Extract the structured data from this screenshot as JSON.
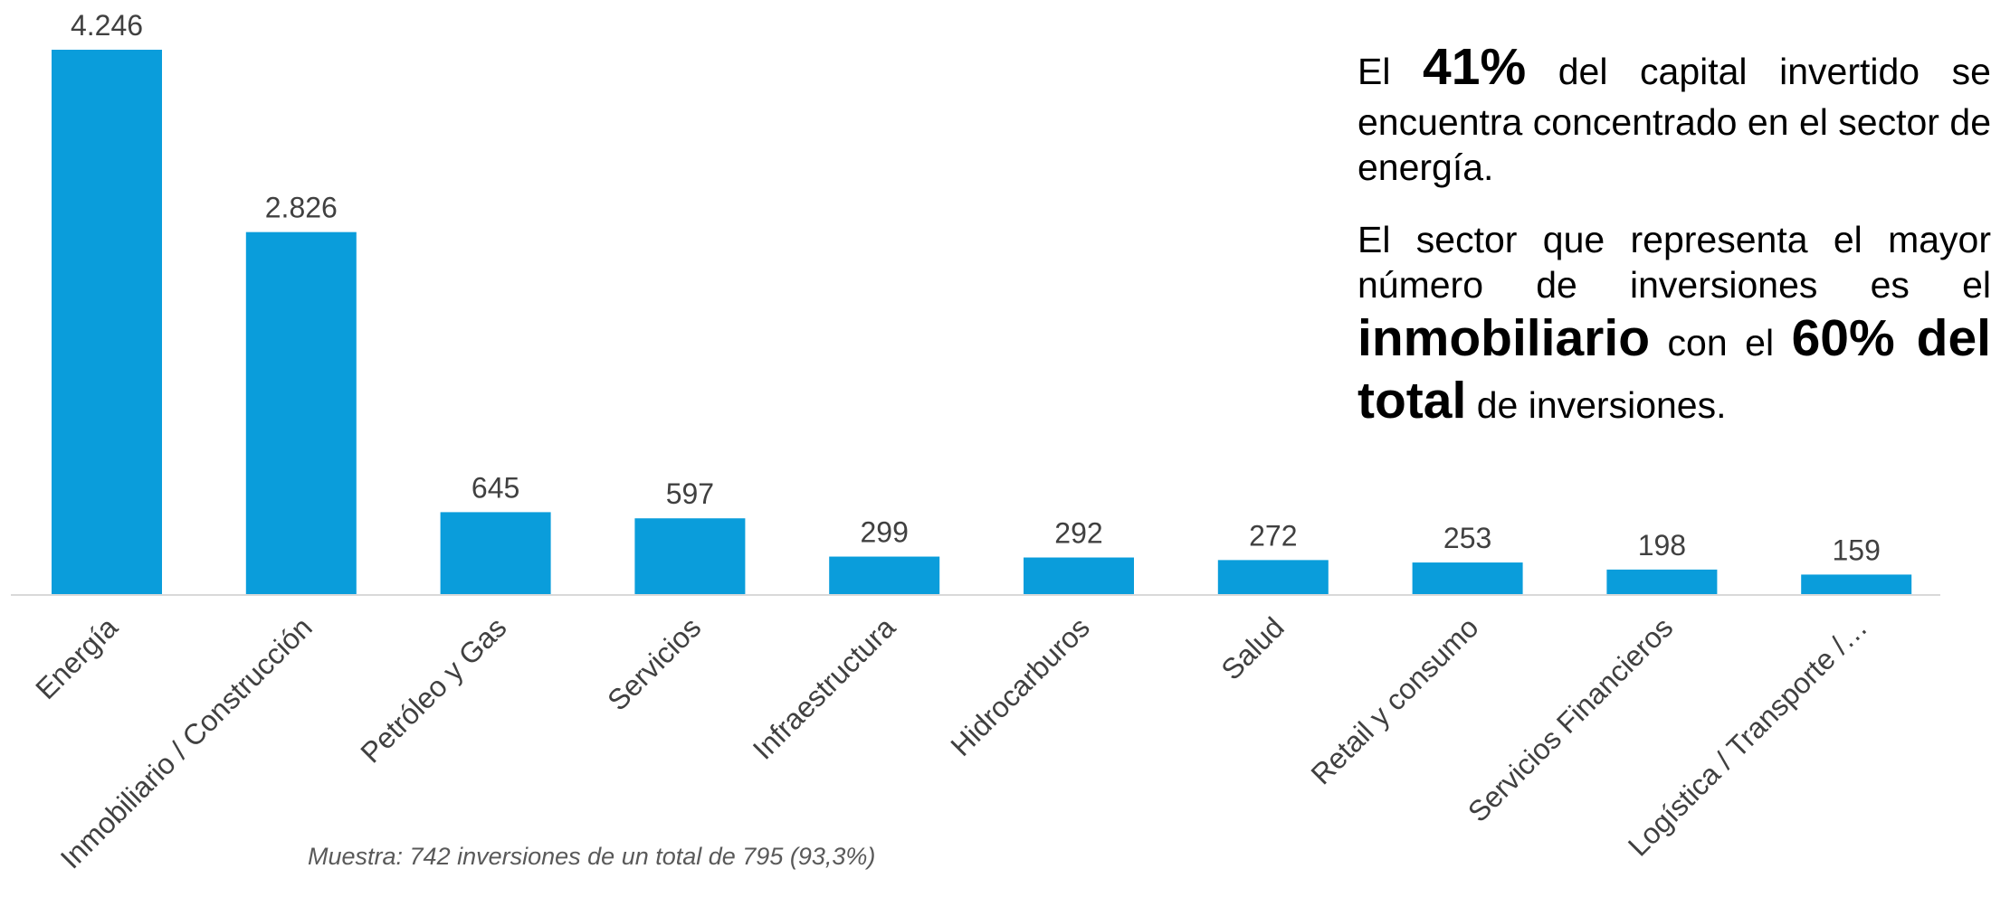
{
  "colors": {
    "bar": "#0a9ddb",
    "axis": "#d9d9d9",
    "label": "#404040"
  },
  "chart_data": {
    "type": "bar",
    "categories": [
      "Energía",
      "Inmobiliario / Construcción",
      "Petróleo y Gas",
      "Servicios",
      "Infraestructura",
      "Hidrocarburos",
      "Salud",
      "Retail y consumo",
      "Servicios Financieros",
      "Logística / Transporte /…"
    ],
    "values": [
      4246,
      2826,
      645,
      597,
      299,
      292,
      272,
      253,
      198,
      159
    ],
    "value_labels": [
      "4.246",
      "2.826",
      "645",
      "597",
      "299",
      "292",
      "272",
      "253",
      "198",
      "159"
    ],
    "title": "",
    "xlabel": "",
    "ylabel": "",
    "ylim": [
      0,
      4246
    ],
    "grid": false,
    "legend": "none"
  },
  "note": "Muestra: 742  inversiones de un total de 795 (93,3%)",
  "insight": {
    "p1": {
      "t1": "El ",
      "b1": "41%",
      "t2": " del capital invertido se encuentra concentrado en el sector de energía."
    },
    "p2": {
      "t1": "El sector que representa el mayor número de inversiones es el ",
      "b1": "inmobiliario",
      "t2": " con el ",
      "b2": "60% del total",
      "t3": " de inversiones."
    }
  }
}
